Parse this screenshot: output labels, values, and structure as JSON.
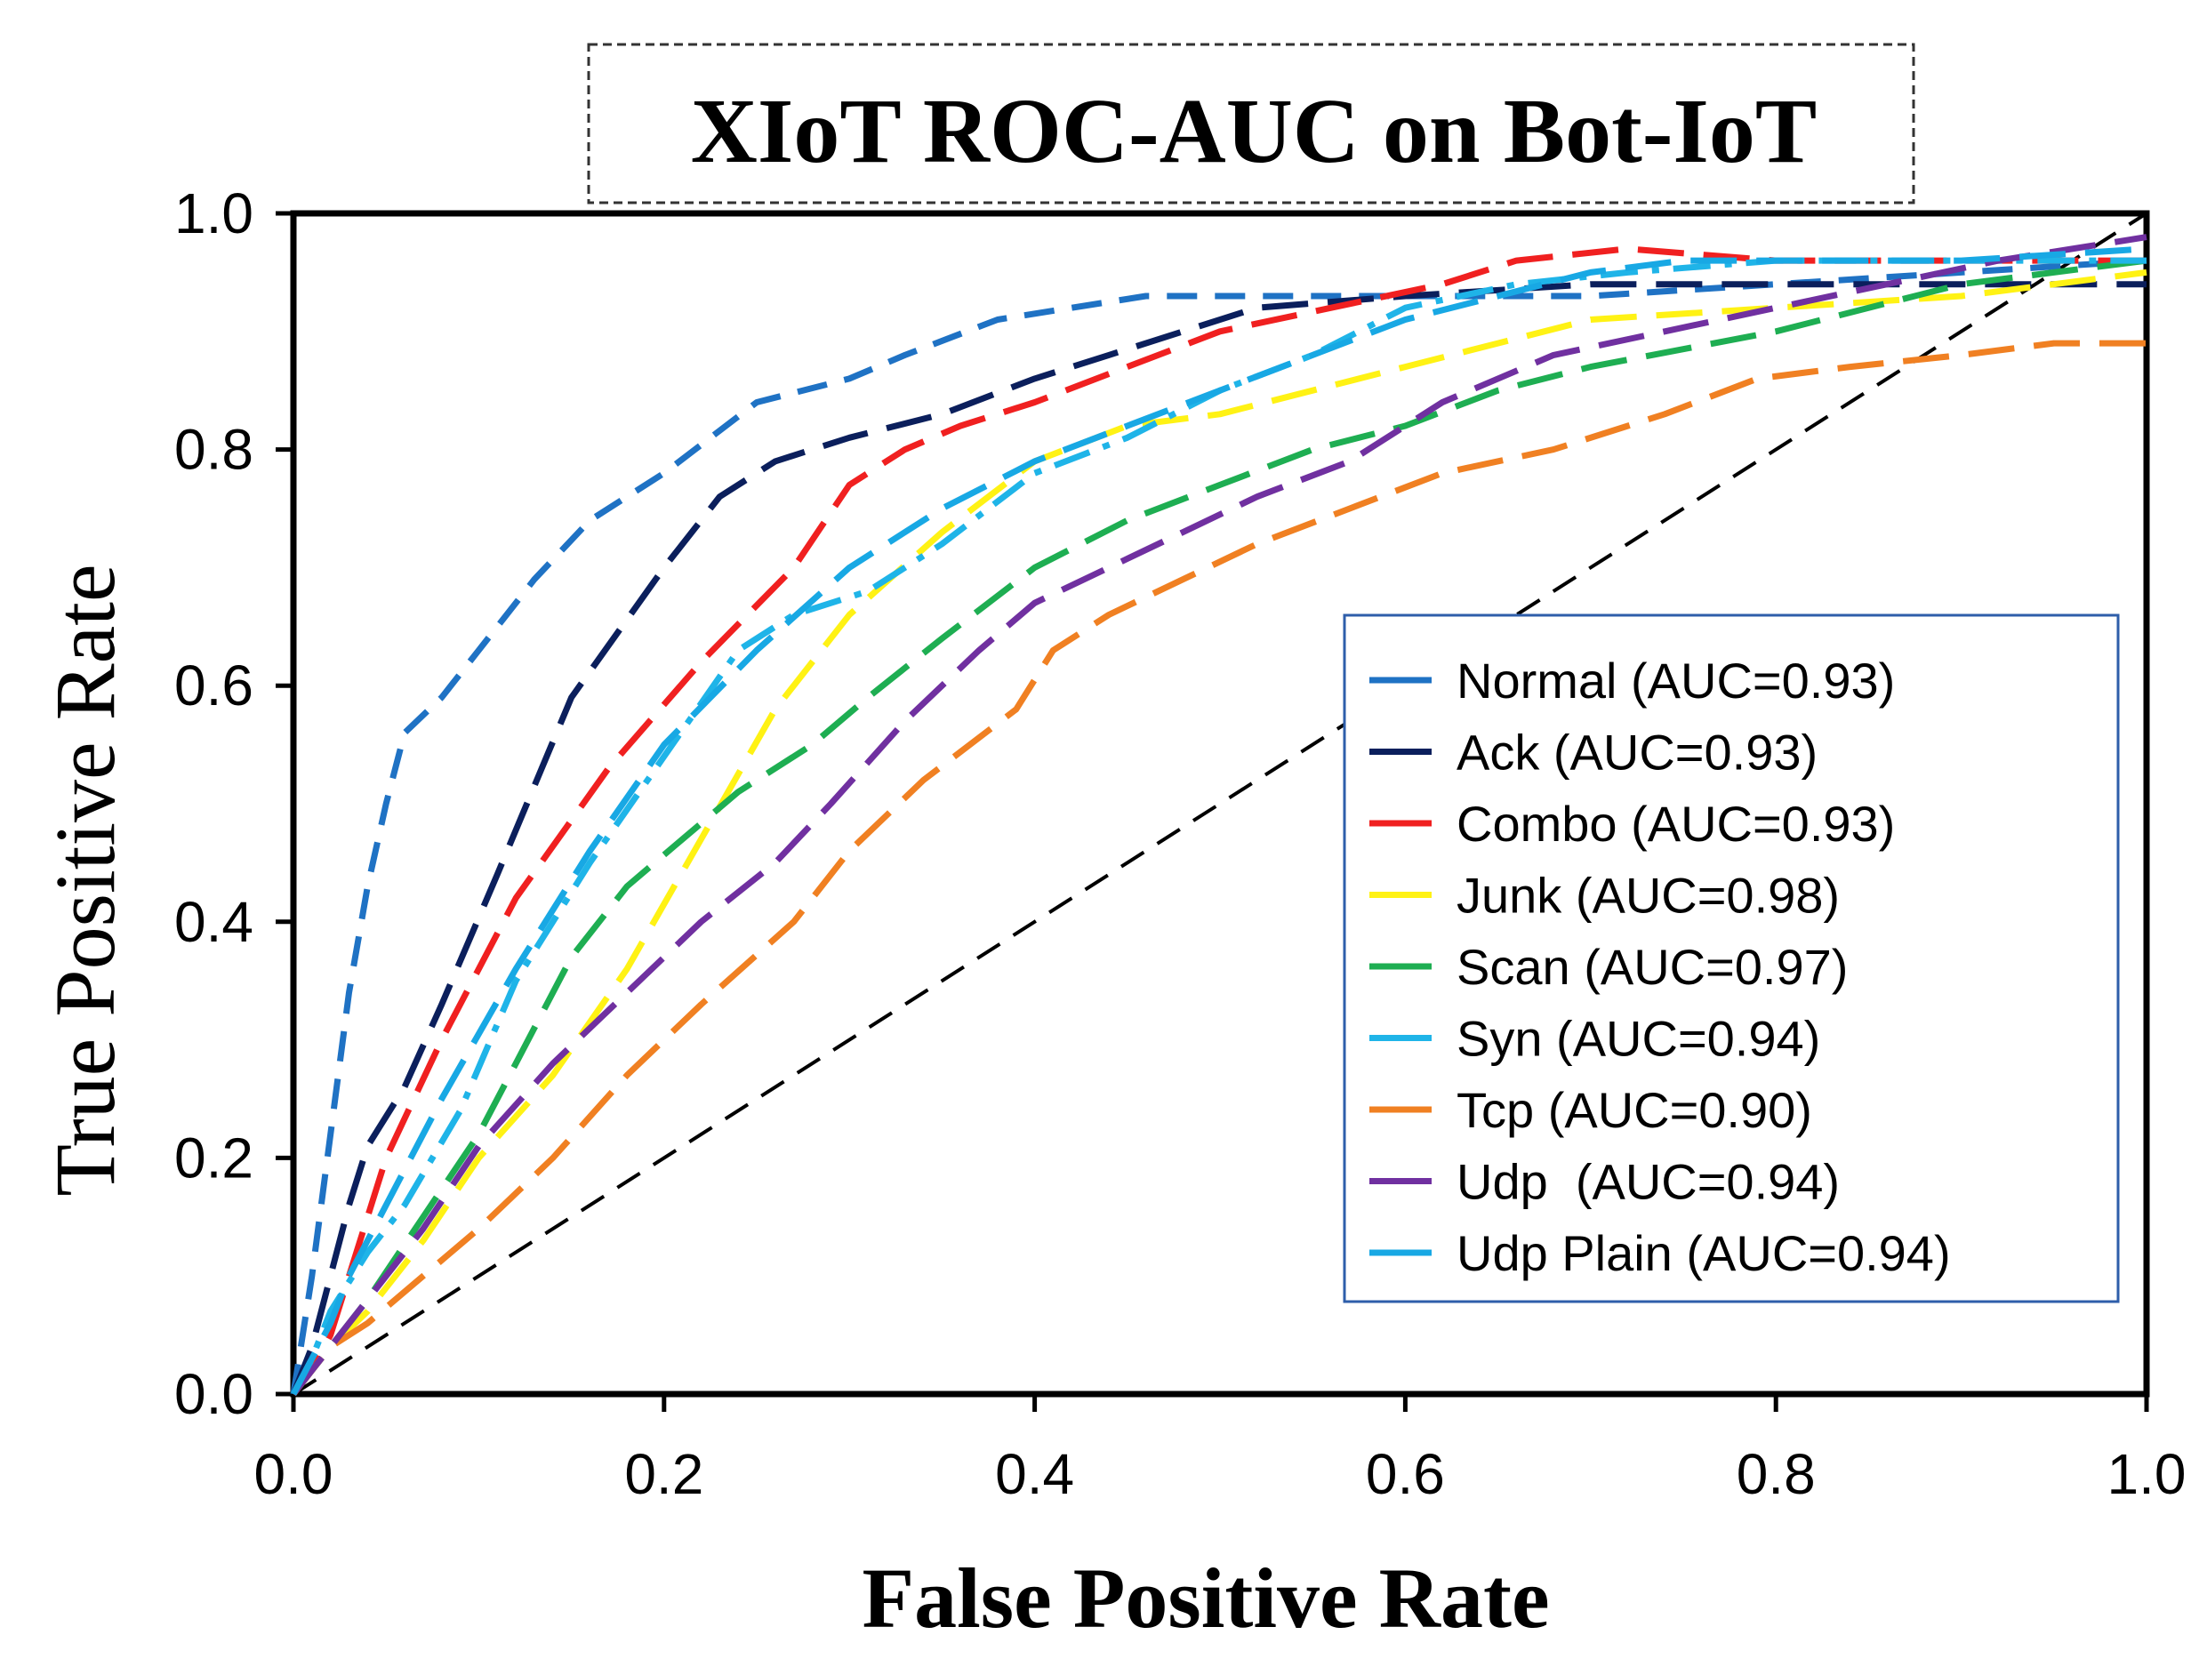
{
  "chart_data": {
    "type": "line",
    "title": "XIoT ROC-AUC on Bot-IoT",
    "xlabel": "False Positive Rate",
    "ylabel": "True Positive Rate",
    "xlim": [
      0.0,
      1.0
    ],
    "ylim": [
      0.0,
      1.0
    ],
    "x_ticks": [
      "0.0",
      "0.2",
      "0.4",
      "0.6",
      "0.8",
      "1.0"
    ],
    "y_ticks": [
      "0.0",
      "0.2",
      "0.4",
      "0.6",
      "0.8",
      "1.0"
    ],
    "grid": false,
    "legend_position": "center-right",
    "diagonal": {
      "name": "chance",
      "color": "#000000",
      "x": [
        0.0,
        1.0
      ],
      "y": [
        0.0,
        1.0
      ]
    },
    "series": [
      {
        "name": "Normal (AUC=0.93)",
        "color": "#1F72C4",
        "dash": "short",
        "x": [
          0.0,
          0.01,
          0.02,
          0.03,
          0.04,
          0.05,
          0.06,
          0.08,
          0.1,
          0.13,
          0.16,
          0.2,
          0.25,
          0.3,
          0.33,
          0.38,
          0.42,
          0.46,
          0.52,
          0.6,
          0.7,
          0.8,
          0.9,
          1.0
        ],
        "y": [
          0.0,
          0.1,
          0.22,
          0.34,
          0.43,
          0.5,
          0.56,
          0.59,
          0.63,
          0.69,
          0.74,
          0.78,
          0.84,
          0.86,
          0.88,
          0.91,
          0.92,
          0.93,
          0.93,
          0.93,
          0.93,
          0.94,
          0.95,
          0.96
        ]
      },
      {
        "name": "Ack (AUC=0.93)",
        "color": "#0B1F5C",
        "dash": "long",
        "x": [
          0.0,
          0.01,
          0.02,
          0.03,
          0.04,
          0.06,
          0.08,
          0.11,
          0.15,
          0.2,
          0.23,
          0.26,
          0.3,
          0.35,
          0.4,
          0.44,
          0.48,
          0.52,
          0.6,
          0.7,
          0.8,
          0.9,
          1.0
        ],
        "y": [
          0.0,
          0.04,
          0.1,
          0.16,
          0.21,
          0.26,
          0.33,
          0.44,
          0.59,
          0.7,
          0.76,
          0.79,
          0.81,
          0.83,
          0.86,
          0.88,
          0.9,
          0.92,
          0.93,
          0.94,
          0.94,
          0.94,
          0.94
        ]
      },
      {
        "name": "Combo (AUC=0.93)",
        "color": "#F02020",
        "dash": "long",
        "x": [
          0.0,
          0.01,
          0.02,
          0.03,
          0.05,
          0.08,
          0.12,
          0.17,
          0.22,
          0.27,
          0.3,
          0.33,
          0.36,
          0.4,
          0.45,
          0.5,
          0.56,
          0.62,
          0.66,
          0.72,
          0.8,
          0.9,
          1.0
        ],
        "y": [
          0.0,
          0.02,
          0.05,
          0.1,
          0.2,
          0.3,
          0.42,
          0.53,
          0.62,
          0.7,
          0.77,
          0.8,
          0.82,
          0.84,
          0.87,
          0.9,
          0.92,
          0.94,
          0.96,
          0.97,
          0.96,
          0.96,
          0.96
        ]
      },
      {
        "name": "Junk (AUC=0.98)",
        "color": "#FFF214",
        "dash": "long",
        "x": [
          0.0,
          0.01,
          0.02,
          0.04,
          0.07,
          0.1,
          0.14,
          0.18,
          0.22,
          0.26,
          0.3,
          0.35,
          0.4,
          0.45,
          0.5,
          0.55,
          0.6,
          0.65,
          0.7,
          0.8,
          0.9,
          1.0
        ],
        "y": [
          0.0,
          0.02,
          0.04,
          0.07,
          0.13,
          0.2,
          0.27,
          0.36,
          0.47,
          0.58,
          0.66,
          0.73,
          0.79,
          0.82,
          0.83,
          0.85,
          0.87,
          0.89,
          0.91,
          0.92,
          0.93,
          0.95
        ]
      },
      {
        "name": "Scan (AUC=0.97)",
        "color": "#1EAE52",
        "dash": "long",
        "x": [
          0.0,
          0.01,
          0.02,
          0.04,
          0.07,
          0.1,
          0.12,
          0.15,
          0.18,
          0.21,
          0.24,
          0.28,
          0.31,
          0.35,
          0.4,
          0.45,
          0.5,
          0.55,
          0.6,
          0.65,
          0.7,
          0.8,
          0.9,
          1.0
        ],
        "y": [
          0.0,
          0.02,
          0.04,
          0.08,
          0.15,
          0.22,
          0.28,
          0.37,
          0.43,
          0.47,
          0.51,
          0.55,
          0.59,
          0.64,
          0.7,
          0.74,
          0.77,
          0.8,
          0.82,
          0.85,
          0.87,
          0.9,
          0.94,
          0.96
        ]
      },
      {
        "name": "Syn (AUC=0.94)",
        "color": "#1FB4E8",
        "dash": "dashdot",
        "x": [
          0.0,
          0.01,
          0.02,
          0.04,
          0.06,
          0.09,
          0.12,
          0.16,
          0.2,
          0.24,
          0.27,
          0.31,
          0.35,
          0.4,
          0.45,
          0.5,
          0.55,
          0.6,
          0.66,
          0.72,
          0.8,
          0.9,
          1.0
        ],
        "y": [
          0.0,
          0.03,
          0.07,
          0.12,
          0.16,
          0.24,
          0.35,
          0.45,
          0.54,
          0.63,
          0.66,
          0.68,
          0.72,
          0.78,
          0.81,
          0.85,
          0.88,
          0.92,
          0.94,
          0.95,
          0.96,
          0.96,
          0.96
        ]
      },
      {
        "name": "Tcp (AUC=0.90)",
        "color": "#F08022",
        "dash": "long",
        "x": [
          0.0,
          0.01,
          0.02,
          0.04,
          0.07,
          0.1,
          0.14,
          0.18,
          0.22,
          0.27,
          0.3,
          0.34,
          0.39,
          0.41,
          0.44,
          0.48,
          0.52,
          0.57,
          0.62,
          0.68,
          0.74,
          0.79,
          0.84,
          0.9,
          0.95,
          1.0
        ],
        "y": [
          0.0,
          0.02,
          0.04,
          0.06,
          0.1,
          0.14,
          0.2,
          0.27,
          0.33,
          0.4,
          0.46,
          0.52,
          0.58,
          0.63,
          0.66,
          0.69,
          0.72,
          0.75,
          0.78,
          0.8,
          0.83,
          0.86,
          0.87,
          0.88,
          0.89,
          0.89
        ]
      },
      {
        "name": "Udp  (AUC=0.94)",
        "color": "#7030A0",
        "dash": "long",
        "x": [
          0.0,
          0.01,
          0.02,
          0.04,
          0.07,
          0.1,
          0.14,
          0.18,
          0.22,
          0.26,
          0.29,
          0.33,
          0.37,
          0.4,
          0.44,
          0.48,
          0.52,
          0.57,
          0.62,
          0.68,
          0.74,
          0.8,
          0.86,
          0.92,
          1.0
        ],
        "y": [
          0.0,
          0.02,
          0.04,
          0.08,
          0.14,
          0.21,
          0.28,
          0.34,
          0.4,
          0.45,
          0.5,
          0.57,
          0.63,
          0.67,
          0.7,
          0.73,
          0.76,
          0.79,
          0.84,
          0.88,
          0.9,
          0.92,
          0.94,
          0.96,
          0.98
        ]
      },
      {
        "name": "Udp Plain (AUC=0.94)",
        "color": "#18A8E4",
        "dash": "long",
        "x": [
          0.0,
          0.01,
          0.02,
          0.03,
          0.05,
          0.08,
          0.12,
          0.16,
          0.2,
          0.25,
          0.3,
          0.35,
          0.4,
          0.45,
          0.5,
          0.55,
          0.6,
          0.65,
          0.7,
          0.75,
          0.8,
          0.9,
          1.0
        ],
        "y": [
          0.0,
          0.03,
          0.06,
          0.1,
          0.16,
          0.25,
          0.36,
          0.46,
          0.55,
          0.63,
          0.7,
          0.75,
          0.79,
          0.82,
          0.85,
          0.88,
          0.91,
          0.93,
          0.95,
          0.96,
          0.96,
          0.96,
          0.97
        ]
      }
    ]
  }
}
